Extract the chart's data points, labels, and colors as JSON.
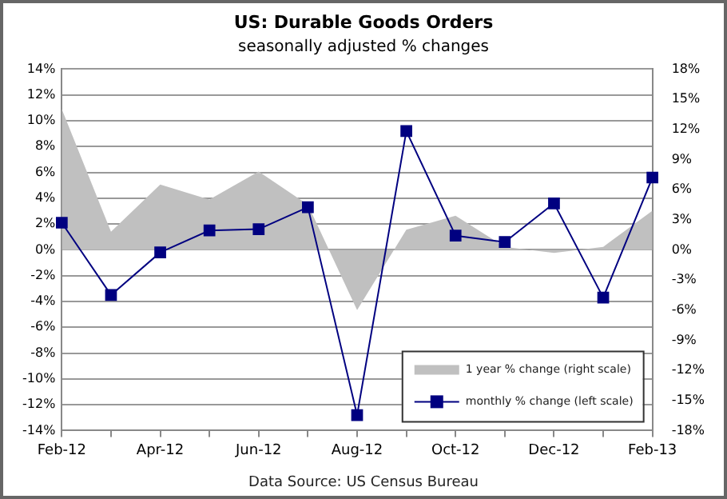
{
  "chart_data": {
    "type": "line",
    "title": "US: Durable Goods Orders",
    "subtitle": "seasonally adjusted % changes",
    "categories": [
      "Feb-12",
      null,
      "Apr-12",
      null,
      "Jun-12",
      null,
      "Aug-12",
      null,
      "Oct-12",
      null,
      "Dec-12",
      null,
      "Feb-13"
    ],
    "series": [
      {
        "name": "1 year % change (right scale)",
        "type": "area",
        "axis": "y2",
        "color": "#c0c0c0",
        "values": [
          14.0,
          1.8,
          6.5,
          5.0,
          7.8,
          4.5,
          -6.0,
          2.0,
          3.4,
          0.3,
          -0.3,
          0.3,
          3.9
        ]
      },
      {
        "name": "monthly % change (left scale)",
        "color": "#000080",
        "marker": "square",
        "values": [
          2.1,
          -3.5,
          -0.2,
          1.5,
          1.6,
          3.3,
          -12.8,
          9.2,
          1.1,
          0.6,
          3.6,
          -3.7,
          5.6
        ]
      }
    ],
    "ylim": [
      -14,
      14
    ],
    "yticks": [
      {
        "value": -14,
        "label": "-14%"
      },
      {
        "value": -12,
        "label": "-12%"
      },
      {
        "value": -10,
        "label": "-10%"
      },
      {
        "value": -8,
        "label": "-8%"
      },
      {
        "value": -6,
        "label": "-6%"
      },
      {
        "value": -4,
        "label": "-4%"
      },
      {
        "value": -2,
        "label": "-2%"
      },
      {
        "value": 0,
        "label": "0%"
      },
      {
        "value": 2,
        "label": "2%"
      },
      {
        "value": 4,
        "label": "4%"
      },
      {
        "value": 6,
        "label": "6%"
      },
      {
        "value": 8,
        "label": "8%"
      },
      {
        "value": 10,
        "label": "10%"
      },
      {
        "value": 12,
        "label": "12%"
      },
      {
        "value": 14,
        "label": "14%"
      }
    ],
    "y2lim": [
      -18,
      18
    ],
    "y2ticks": [
      {
        "value": -18,
        "label": "-18%"
      },
      {
        "value": -15,
        "label": "-15%"
      },
      {
        "value": -12,
        "label": "-12%"
      },
      {
        "value": -9,
        "label": "-9%"
      },
      {
        "value": -6,
        "label": "-6%"
      },
      {
        "value": -3,
        "label": "-3%"
      },
      {
        "value": 0,
        "label": "0%"
      },
      {
        "value": 3,
        "label": "3%"
      },
      {
        "value": 6,
        "label": "6%"
      },
      {
        "value": 9,
        "label": "9%"
      },
      {
        "value": 12,
        "label": "12%"
      },
      {
        "value": 15,
        "label": "15%"
      },
      {
        "value": 18,
        "label": "18%"
      }
    ],
    "grid": "y",
    "legend": "bottom right",
    "annotations": [
      "Data Source: US Census Bureau"
    ]
  }
}
